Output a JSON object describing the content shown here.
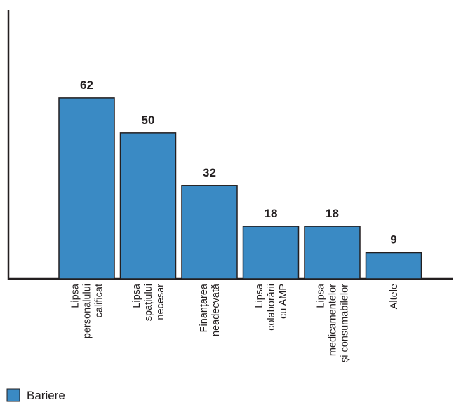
{
  "chart_data": {
    "type": "bar",
    "categories": [
      [
        "Lipsa",
        "personalului",
        "calificat"
      ],
      [
        "Lipsa",
        "spațiului",
        "necesar"
      ],
      [
        "Finanțarea",
        "neadecvată"
      ],
      [
        "Lipsa",
        "colaborării",
        "cu AMP"
      ],
      [
        "Lipsa",
        "medicamentelor",
        "și consumabilelor"
      ],
      [
        "Altele"
      ]
    ],
    "series": [
      {
        "name": "Bariere",
        "values": [
          62,
          50,
          32,
          18,
          18,
          9
        ],
        "color": "#3a8ac4"
      }
    ],
    "ylim": [
      0,
      92
    ],
    "grid": false,
    "data_labels": true,
    "legend_position": "bottom-left"
  }
}
